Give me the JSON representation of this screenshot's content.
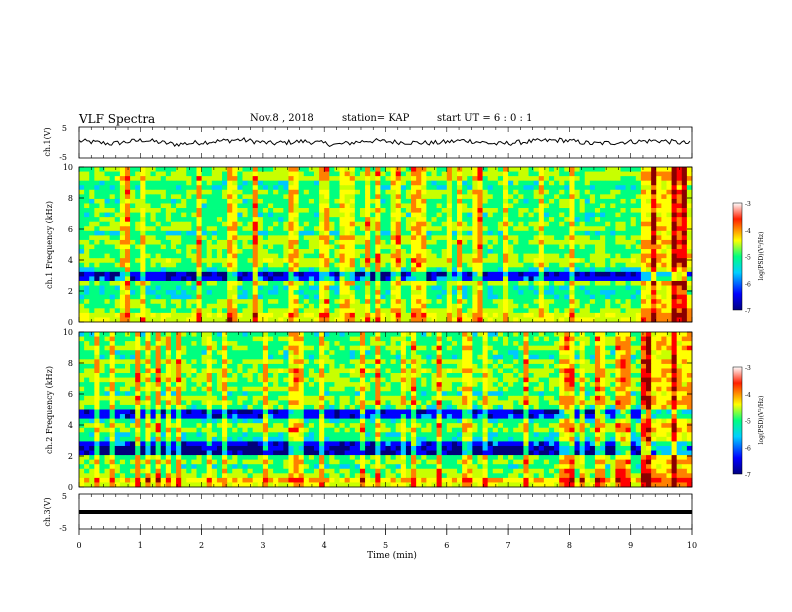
{
  "header": {
    "title": "VLF Spectra",
    "date": "Nov.8 , 2018",
    "station": "station= KAP",
    "start": "start UT = 6 : 0 : 1"
  },
  "chart_data": [
    {
      "type": "line",
      "panel": "ch1-waveform",
      "ylabel": "ch.1(V)",
      "ylim": [
        -5,
        5
      ],
      "yticks": [
        "5",
        "-5"
      ],
      "xlim": [
        0,
        10
      ],
      "description_values": "noisy trace fluctuating around ~0 V, amplitude mostly within ±2 V",
      "series": [
        {
          "values": [
            0.5,
            -0.4,
            0.8,
            -0.6,
            0.2,
            0.9,
            -0.3,
            0.4,
            -0.7,
            0.6,
            0.1,
            -0.2,
            0.7,
            -0.5,
            0.3,
            0.8,
            -0.4,
            0.2,
            0.6,
            -0.3
          ]
        }
      ]
    },
    {
      "type": "heatmap",
      "panel": "ch1-spectrogram",
      "ylabel": "ch.1 Frequency (kHz)",
      "ylim": [
        0,
        10
      ],
      "yticks": [
        "0",
        "2",
        "4",
        "6",
        "8",
        "10"
      ],
      "xlim": [
        0,
        10
      ],
      "colorbar": {
        "label": "log(PSD)(V²/Hz)",
        "range": [
          -7,
          -3
        ],
        "ticks": [
          "-3",
          "-4",
          "-5",
          "-6",
          "-7"
        ]
      },
      "dark_bands_khz": [
        [
          2.7,
          3.2
        ],
        [
          3.4,
          3.6
        ]
      ],
      "bright_region_min": [
        9.2,
        9.9
      ]
    },
    {
      "type": "heatmap",
      "panel": "ch2-spectrogram",
      "ylabel": "ch.2 Frequency (kHz)",
      "ylim": [
        0,
        10
      ],
      "yticks": [
        "0",
        "2",
        "4",
        "6",
        "8",
        "10"
      ],
      "xlim": [
        0,
        10
      ],
      "colorbar": {
        "label": "log(PSD)(V²/Hz)",
        "range": [
          -7,
          -3
        ],
        "ticks": [
          "-3",
          "-4",
          "-5",
          "-6",
          "-7"
        ]
      },
      "dark_bands_khz": [
        [
          2.0,
          3.0
        ],
        [
          4.5,
          5.0
        ]
      ],
      "bright_region_min": [
        9.2,
        9.9
      ]
    },
    {
      "type": "line",
      "panel": "ch3-waveform",
      "ylabel": "ch.3(V)",
      "ylim": [
        -5,
        5
      ],
      "yticks": [
        "5",
        "-5"
      ],
      "xlim": [
        0,
        10
      ],
      "xlabel": "Time (min)",
      "xticks": [
        "0",
        "1",
        "2",
        "3",
        "4",
        "5",
        "6",
        "7",
        "8",
        "9",
        "10"
      ],
      "series": [
        {
          "values": [
            0,
            0,
            0,
            0,
            0,
            0,
            0,
            0,
            0,
            0,
            0
          ]
        }
      ]
    }
  ],
  "colors": {
    "scale": [
      "#00007a",
      "#0000ff",
      "#00c8ff",
      "#00ff80",
      "#c8ff00",
      "#ffff00",
      "#ff8000",
      "#ff0000",
      "#8a0000"
    ]
  }
}
